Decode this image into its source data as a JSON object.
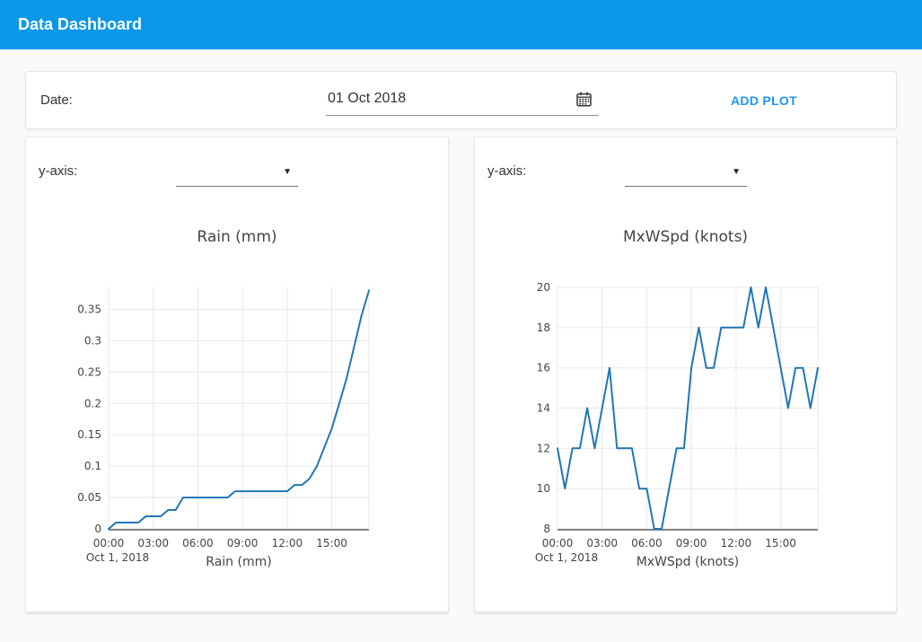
{
  "header": {
    "title": "Data Dashboard"
  },
  "toolbar": {
    "date_label": "Date:",
    "date_value": "01 Oct 2018",
    "add_plot_label": "ADD PLOT",
    "calendar_icon": "calendar-icon"
  },
  "plots": [
    {
      "yaxis_label": "y-axis:",
      "select_value": "",
      "caret_icon": "chevron-down-icon"
    },
    {
      "yaxis_label": "y-axis:",
      "select_value": "",
      "caret_icon": "chevron-down-icon"
    }
  ],
  "ui": {
    "caret_glyph": "▼"
  },
  "colors": {
    "header_bg": "#0997ea",
    "accent": "#1e96f3",
    "line": "#1f77b4",
    "grid": "#e8e8e8",
    "axis": "#444444",
    "text": "#444444"
  },
  "chart_data": [
    {
      "type": "line",
      "title": "Rain (mm)",
      "xlabel": "Rain (mm)",
      "x_date_label": "Oct 1, 2018",
      "legend": "none",
      "grid": true,
      "times": [
        "00:00",
        "00:30",
        "01:00",
        "01:30",
        "02:00",
        "02:30",
        "03:00",
        "03:30",
        "04:00",
        "04:30",
        "05:00",
        "05:30",
        "06:00",
        "06:30",
        "07:00",
        "07:30",
        "08:00",
        "08:30",
        "09:00",
        "09:30",
        "10:00",
        "10:30",
        "11:00",
        "11:30",
        "12:00",
        "12:30",
        "13:00",
        "13:30",
        "14:00",
        "14:30",
        "15:00",
        "15:30",
        "16:00",
        "16:30",
        "17:00",
        "17:30"
      ],
      "values": [
        0,
        0.01,
        0.01,
        0.01,
        0.01,
        0.02,
        0.02,
        0.02,
        0.03,
        0.03,
        0.05,
        0.05,
        0.05,
        0.05,
        0.05,
        0.05,
        0.05,
        0.06,
        0.06,
        0.06,
        0.06,
        0.06,
        0.06,
        0.06,
        0.06,
        0.07,
        0.07,
        0.08,
        0.1,
        0.13,
        0.16,
        0.2,
        0.24,
        0.29,
        0.34,
        0.38
      ],
      "yticks": [
        0,
        0.05,
        0.1,
        0.15,
        0.2,
        0.25,
        0.3,
        0.35
      ],
      "ytick_labels": [
        "0",
        "0.05",
        "0.1",
        "0.15",
        "0.2",
        "0.25",
        "0.3",
        "0.35"
      ],
      "ylim": [
        0,
        0.385
      ],
      "xticks_hours": [
        0,
        3,
        6,
        9,
        12,
        15
      ],
      "xtick_labels": [
        "00:00",
        "03:00",
        "06:00",
        "09:00",
        "12:00",
        "15:00"
      ],
      "xlim_hours": [
        0,
        17.5
      ]
    },
    {
      "type": "line",
      "title": "MxWSpd (knots)",
      "xlabel": "MxWSpd (knots)",
      "x_date_label": "Oct 1, 2018",
      "legend": "none",
      "grid": true,
      "times": [
        "00:00",
        "00:30",
        "01:00",
        "01:30",
        "02:00",
        "02:30",
        "03:00",
        "03:30",
        "04:00",
        "04:30",
        "05:00",
        "05:30",
        "06:00",
        "06:30",
        "07:00",
        "07:30",
        "08:00",
        "08:30",
        "09:00",
        "09:30",
        "10:00",
        "10:30",
        "11:00",
        "11:30",
        "12:00",
        "12:30",
        "13:00",
        "13:30",
        "14:00",
        "14:30",
        "15:00",
        "15:30",
        "16:00",
        "16:30",
        "17:00",
        "17:30"
      ],
      "values": [
        12,
        10,
        12,
        12,
        14,
        12,
        14,
        16,
        12,
        12,
        12,
        10,
        10,
        8,
        8,
        10,
        12,
        12,
        16,
        18,
        16,
        16,
        18,
        18,
        18,
        18,
        20,
        18,
        20,
        18,
        16,
        14,
        16,
        16,
        14,
        16
      ],
      "yticks": [
        8,
        10,
        12,
        14,
        16,
        18,
        20
      ],
      "ytick_labels": [
        "8",
        "10",
        "12",
        "14",
        "16",
        "18",
        "20"
      ],
      "ylim": [
        8,
        20
      ],
      "xticks_hours": [
        0,
        3,
        6,
        9,
        12,
        15
      ],
      "xtick_labels": [
        "00:00",
        "03:00",
        "06:00",
        "09:00",
        "12:00",
        "15:00"
      ],
      "xlim_hours": [
        0,
        17.5
      ]
    }
  ]
}
